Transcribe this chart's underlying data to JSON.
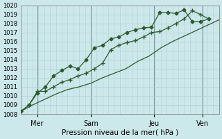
{
  "background_color": "#cce8ea",
  "grid_color_major": "#b0d0d4",
  "grid_color_minor": "#c0dde0",
  "line_color": "#2d5a2d",
  "xlabel": "Pression niveau de la mer( hPa )",
  "xlabel_fontsize": 7.5,
  "ylim": [
    1008,
    1020
  ],
  "xlim": [
    0,
    8.5
  ],
  "ytick_fontsize": 6,
  "xtick_fontsize": 7,
  "yticks": [
    1008,
    1009,
    1010,
    1011,
    1012,
    1013,
    1014,
    1015,
    1016,
    1017,
    1018,
    1019,
    1020
  ],
  "xtick_labels": [
    "Mer",
    "Sam",
    "Jeu",
    "Ven"
  ],
  "xtick_positions": [
    0.7,
    3.0,
    5.7,
    7.8
  ],
  "vline_positions": [
    0.7,
    3.0,
    5.7,
    7.8
  ],
  "series1_x": [
    0.0,
    0.35,
    0.7,
    1.05,
    1.4,
    1.75,
    2.1,
    2.45,
    2.8,
    3.15,
    3.5,
    3.85,
    4.2,
    4.55,
    4.9,
    5.25,
    5.6,
    5.95,
    6.3,
    6.65,
    7.0,
    7.35,
    7.7,
    8.05
  ],
  "series1_y": [
    1008.3,
    1009.0,
    1010.3,
    1011.0,
    1012.2,
    1012.8,
    1013.3,
    1013.0,
    1014.0,
    1015.3,
    1015.6,
    1016.3,
    1016.5,
    1017.0,
    1017.3,
    1017.5,
    1017.6,
    1019.2,
    1019.2,
    1019.1,
    1019.5,
    1018.2,
    1018.2,
    1018.5
  ],
  "series2_x": [
    0.0,
    0.35,
    0.7,
    1.05,
    1.4,
    1.75,
    2.1,
    2.45,
    2.8,
    3.15,
    3.5,
    3.85,
    4.2,
    4.55,
    4.9,
    5.25,
    5.6,
    5.95,
    6.3,
    6.65,
    7.0,
    7.35,
    7.7,
    8.05
  ],
  "series2_y": [
    1008.3,
    1009.0,
    1010.5,
    1010.5,
    1011.0,
    1011.5,
    1011.8,
    1012.2,
    1012.5,
    1013.0,
    1013.6,
    1015.1,
    1015.6,
    1015.9,
    1016.1,
    1016.5,
    1017.0,
    1017.1,
    1017.5,
    1018.0,
    1018.5,
    1019.4,
    1019.0,
    1018.5
  ],
  "series3_x": [
    0.0,
    0.5,
    1.0,
    1.5,
    2.0,
    2.5,
    3.0,
    3.5,
    4.0,
    4.5,
    5.0,
    5.5,
    6.0,
    6.5,
    7.0,
    7.5,
    8.0,
    8.5
  ],
  "series3_y": [
    1008.3,
    1009.0,
    1009.6,
    1010.2,
    1010.7,
    1011.0,
    1011.4,
    1012.0,
    1012.5,
    1013.0,
    1013.8,
    1014.4,
    1015.3,
    1016.0,
    1016.6,
    1017.2,
    1017.8,
    1018.4
  ]
}
